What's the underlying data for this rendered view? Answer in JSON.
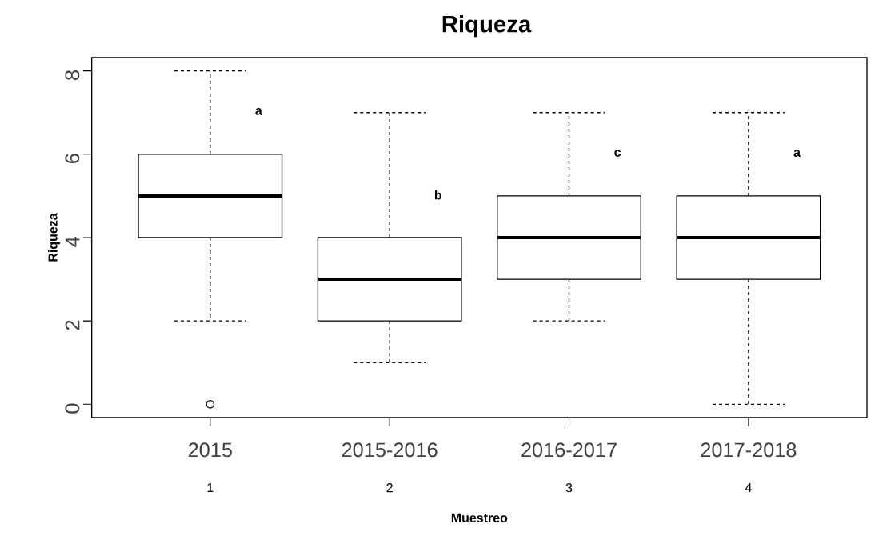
{
  "chart_data": {
    "type": "box",
    "title": "Riqueza",
    "xlabel": "Muestreo",
    "ylabel": "Riqueza",
    "categories": [
      "2015",
      "2015-2016",
      "2016-2017",
      "2017-2018"
    ],
    "boxes": [
      {
        "low": 2,
        "q1": 4,
        "median": 5,
        "q3": 6,
        "high": 8,
        "outliers": [
          0
        ]
      },
      {
        "low": 1,
        "q1": 2,
        "median": 3,
        "q3": 4,
        "high": 7
      },
      {
        "low": 2,
        "q1": 3,
        "median": 4,
        "q3": 5,
        "high": 7
      },
      {
        "low": 0,
        "q1": 3,
        "median": 4,
        "q3": 5,
        "high": 7
      }
    ],
    "ylim": [
      -0.32,
      8.32
    ],
    "yticks": [
      0,
      2,
      4,
      6,
      8
    ],
    "grid": false,
    "annotations": [
      "a",
      "b",
      "c",
      "a",
      "1",
      "2",
      "3",
      "4"
    ]
  }
}
